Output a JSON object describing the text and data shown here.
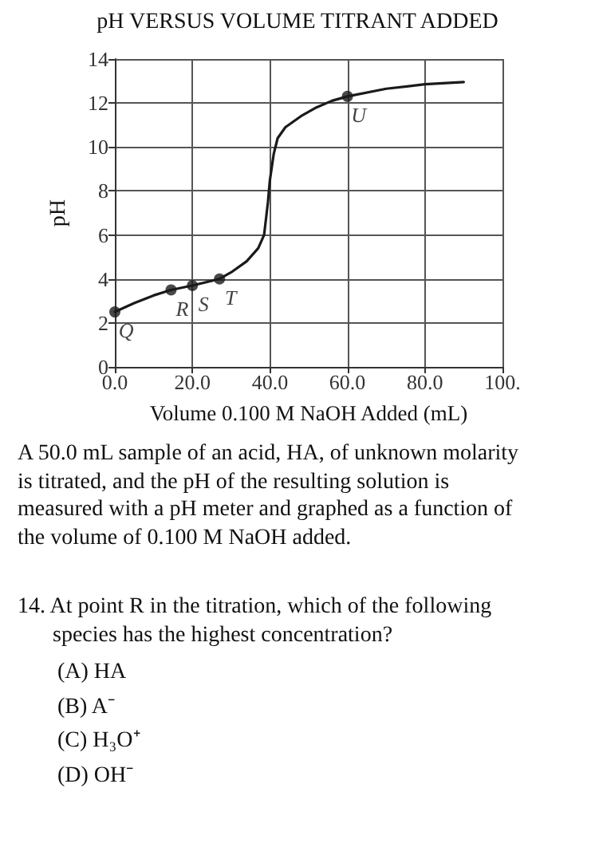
{
  "chart_data": {
    "type": "line",
    "title": "pH VERSUS VOLUME TITRANT ADDED",
    "xlabel": "Volume 0.100 M NaOH Added (mL)",
    "ylabel": "pH",
    "xlim": [
      0,
      100
    ],
    "xticks": [
      {
        "value": 0,
        "label": "0.0"
      },
      {
        "value": 20,
        "label": "20.0"
      },
      {
        "value": 40,
        "label": "40.0"
      },
      {
        "value": 60,
        "label": "60.0"
      },
      {
        "value": 80,
        "label": "80.0"
      },
      {
        "value": 100,
        "label": "100."
      }
    ],
    "ylim": [
      0,
      14
    ],
    "yticks": [
      0,
      2,
      4,
      6,
      8,
      10,
      12,
      14
    ],
    "grid": true,
    "series": [
      {
        "color": "#1a1a1a",
        "marker": "none",
        "line_style": "solid",
        "x": [
          0,
          5,
          10,
          14.5,
          20,
          27,
          30,
          34,
          37,
          38.5,
          39.5,
          40,
          41,
          42,
          44,
          48,
          52,
          56,
          60,
          70,
          80,
          90
        ],
        "values": [
          2.5,
          2.9,
          3.25,
          3.5,
          3.7,
          4.0,
          4.3,
          4.8,
          5.4,
          6.0,
          7.5,
          8.5,
          9.7,
          10.4,
          10.9,
          11.4,
          11.8,
          12.1,
          12.3,
          12.65,
          12.85,
          12.95
        ]
      },
      {
        "type": "scatter",
        "color": "#1a1a1a",
        "marker": "circle",
        "x": [
          0,
          14.5,
          20,
          27,
          60
        ],
        "values": [
          2.5,
          3.5,
          3.7,
          4.0,
          12.3
        ]
      }
    ],
    "annotations": [
      {
        "text": "Q",
        "x": 0,
        "y": 2.5
      },
      {
        "text": "R",
        "x": 14.5,
        "y": 3.5
      },
      {
        "text": "S",
        "x": 20,
        "y": 3.7
      },
      {
        "text": "T",
        "x": 27,
        "y": 4.0
      },
      {
        "text": "U",
        "x": 60,
        "y": 12.3
      },
      "A 50.0 mL sample of an acid, HA, of unknown molarity is titrated, and the pH of the resulting solution is measured with a pH meter and graphed as a function of the volume of 0.100 M NaOH added.",
      "14. At point R in the titration, which of the following species has the highest concentration?",
      "(A) HA",
      "(B) A⁻",
      "(C) H₃O⁺",
      "(D) OH⁻"
    ]
  }
}
